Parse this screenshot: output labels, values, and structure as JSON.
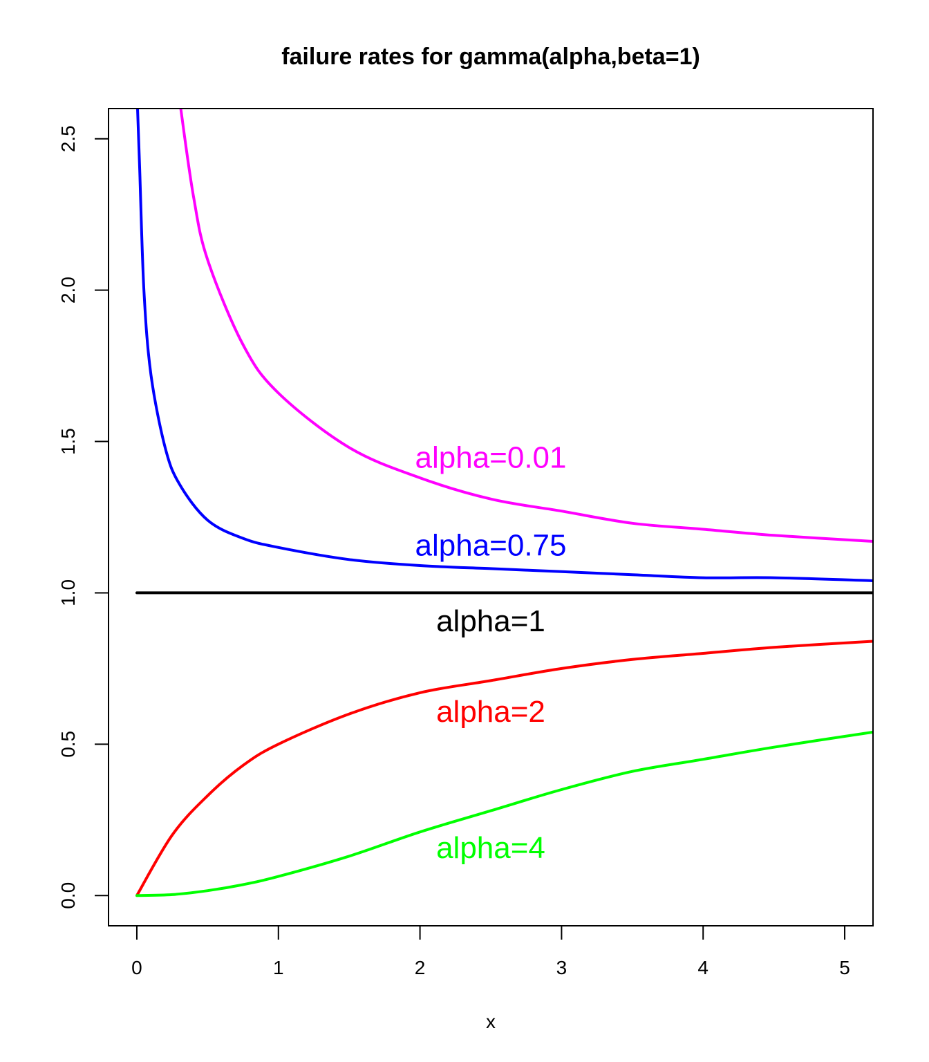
{
  "chart_data": {
    "type": "line",
    "title": "failure rates for gamma(alpha,beta=1)",
    "xlabel": "x",
    "ylabel": "",
    "xlim": [
      -0.2,
      5.2
    ],
    "ylim": [
      -0.1,
      2.6
    ],
    "xticks": [
      "0",
      "1",
      "2",
      "3",
      "4",
      "5"
    ],
    "yticks": [
      "0.0",
      "0.5",
      "1.0",
      "1.5",
      "2.0",
      "2.5"
    ],
    "grid": false,
    "series": [
      {
        "name": "alpha=0.01",
        "color": "#ff00ff",
        "x": [
          0.31,
          0.4,
          0.5,
          0.75,
          1.0,
          1.5,
          2.0,
          2.5,
          3.0,
          3.5,
          4.0,
          4.5,
          5.2
        ],
        "y": [
          2.6,
          2.31,
          2.1,
          1.82,
          1.66,
          1.48,
          1.38,
          1.31,
          1.27,
          1.23,
          1.21,
          1.19,
          1.17
        ]
      },
      {
        "name": "alpha=0.75",
        "color": "#0000ff",
        "x": [
          0.005,
          0.02,
          0.05,
          0.1,
          0.2,
          0.3,
          0.5,
          0.75,
          1.0,
          1.5,
          2.0,
          2.5,
          3.0,
          3.5,
          4.0,
          4.5,
          5.2
        ],
        "y": [
          2.6,
          2.4,
          2.0,
          1.72,
          1.48,
          1.36,
          1.24,
          1.18,
          1.15,
          1.11,
          1.09,
          1.08,
          1.07,
          1.06,
          1.05,
          1.05,
          1.04
        ]
      },
      {
        "name": "alpha=1",
        "color": "#000000",
        "x": [
          0,
          5.2
        ],
        "y": [
          1.0,
          1.0
        ]
      },
      {
        "name": "alpha=2",
        "color": "#ff0000",
        "x": [
          0,
          0.25,
          0.5,
          0.75,
          1.0,
          1.5,
          2.0,
          2.5,
          3.0,
          3.5,
          4.0,
          4.5,
          5.2
        ],
        "y": [
          0,
          0.2,
          0.33,
          0.43,
          0.5,
          0.6,
          0.67,
          0.71,
          0.75,
          0.78,
          0.8,
          0.82,
          0.84
        ]
      },
      {
        "name": "alpha=4",
        "color": "#00ff00",
        "x": [
          0,
          0.25,
          0.5,
          0.75,
          1.0,
          1.5,
          2.0,
          2.5,
          3.0,
          3.5,
          4.0,
          4.5,
          5.2
        ],
        "y": [
          0,
          0.003,
          0.016,
          0.036,
          0.063,
          0.13,
          0.21,
          0.28,
          0.35,
          0.41,
          0.45,
          0.49,
          0.54
        ]
      }
    ],
    "annotations": [
      {
        "text": "alpha=0.01",
        "x": 2.5,
        "y": 1.44,
        "color": "#ff00ff"
      },
      {
        "text": "alpha=0.75",
        "x": 2.5,
        "y": 1.15,
        "color": "#0000ff"
      },
      {
        "text": "alpha=1",
        "x": 2.5,
        "y": 0.9,
        "color": "#000000"
      },
      {
        "text": "alpha=2",
        "x": 2.5,
        "y": 0.6,
        "color": "#ff0000"
      },
      {
        "text": "alpha=4",
        "x": 2.5,
        "y": 0.15,
        "color": "#00ff00"
      }
    ]
  }
}
